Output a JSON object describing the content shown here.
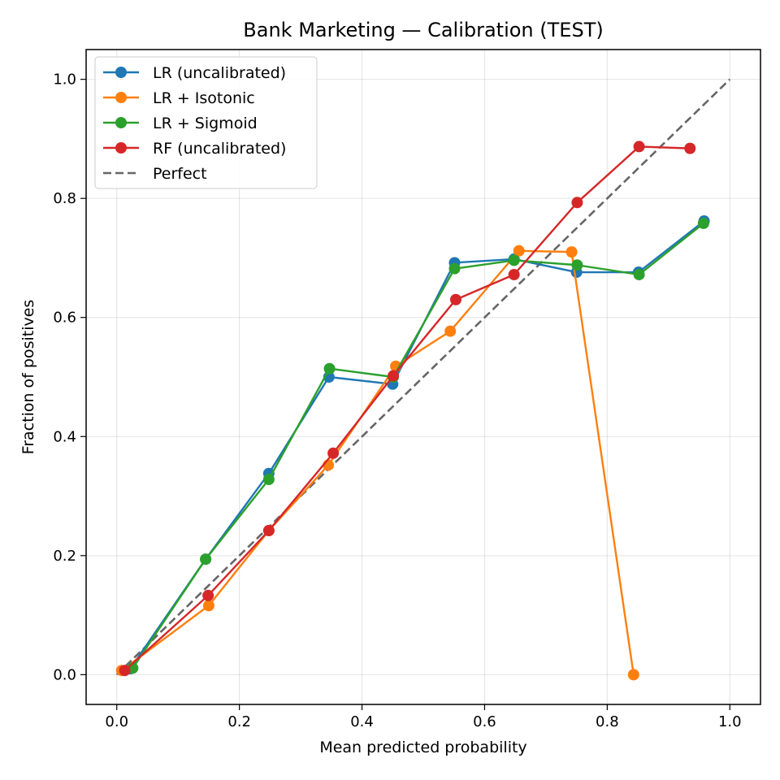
{
  "chart_data": {
    "type": "line",
    "title": "Bank Marketing — Calibration (TEST)",
    "xlabel": "Mean predicted probability",
    "ylabel": "Fraction of positives",
    "xlim": [
      -0.05,
      1.05
    ],
    "ylim": [
      -0.05,
      1.05
    ],
    "xticks": [
      "0.0",
      "0.2",
      "0.4",
      "0.6",
      "0.8",
      "1.0"
    ],
    "yticks": [
      "0.0",
      "0.2",
      "0.4",
      "0.6",
      "0.8",
      "1.0"
    ],
    "grid": true,
    "legend_position": "top-left",
    "series": [
      {
        "name": "LR (uncalibrated)",
        "color": "#1f77b4",
        "style": "line-marker",
        "x": [
          0.022,
          0.145,
          0.248,
          0.346,
          0.45,
          0.551,
          0.648,
          0.75,
          0.851,
          0.958
        ],
        "y": [
          0.01,
          0.194,
          0.338,
          0.5,
          0.488,
          0.692,
          0.698,
          0.676,
          0.676,
          0.762
        ]
      },
      {
        "name": "LR + Isotonic",
        "color": "#ff7f0e",
        "style": "line-marker",
        "x": [
          0.008,
          0.15,
          0.248,
          0.345,
          0.455,
          0.544,
          0.656,
          0.742,
          0.843
        ],
        "y": [
          0.007,
          0.116,
          0.242,
          0.352,
          0.518,
          0.577,
          0.712,
          0.71,
          0.0
        ]
      },
      {
        "name": "LR + Sigmoid",
        "color": "#2ca02c",
        "style": "line-marker",
        "x": [
          0.026,
          0.145,
          0.248,
          0.347,
          0.451,
          0.551,
          0.648,
          0.751,
          0.852,
          0.957
        ],
        "y": [
          0.011,
          0.194,
          0.328,
          0.514,
          0.5,
          0.682,
          0.696,
          0.688,
          0.672,
          0.758
        ]
      },
      {
        "name": "RF (uncalibrated)",
        "color": "#d62728",
        "style": "line-marker",
        "x": [
          0.013,
          0.149,
          0.248,
          0.353,
          0.451,
          0.553,
          0.648,
          0.751,
          0.852,
          0.935
        ],
        "y": [
          0.007,
          0.133,
          0.242,
          0.372,
          0.502,
          0.63,
          0.672,
          0.793,
          0.887,
          0.884
        ]
      },
      {
        "name": "Perfect",
        "color": "#666666",
        "style": "dashed",
        "x": [
          0.0,
          1.0
        ],
        "y": [
          0.0,
          1.0
        ]
      }
    ]
  }
}
